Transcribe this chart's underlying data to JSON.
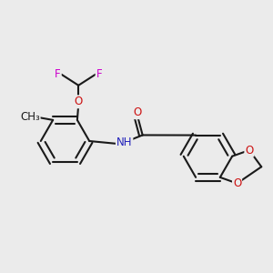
{
  "bg_color": "#ebebeb",
  "bond_color": "#1a1a1a",
  "bond_width": 1.5,
  "dbo": 0.055,
  "atom_colors": {
    "C": "#1a1a1a",
    "N": "#2222bb",
    "O": "#cc1111",
    "F": "#cc00cc",
    "H": "#1a1a1a"
  },
  "font_size": 8.5,
  "fig_size": [
    3.0,
    3.0
  ],
  "dpi": 100
}
